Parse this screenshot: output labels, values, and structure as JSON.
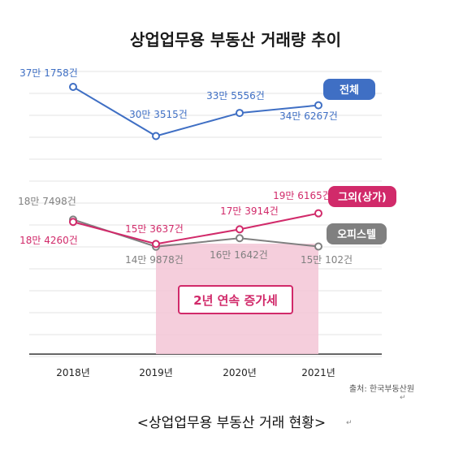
{
  "chart_data": {
    "type": "line",
    "title": "상업업무용 부동산 거래량 추이",
    "categories": [
      "2018년",
      "2019년",
      "2020년",
      "2021년"
    ],
    "series": [
      {
        "name": "전체",
        "values": [
          371758,
          303515,
          335556,
          346267
        ],
        "labels": [
          "37만 1758건",
          "30만 3515건",
          "33만 5556건",
          "34만 6267건"
        ],
        "color": "#3f6fc4"
      },
      {
        "name": "그외(상가)",
        "values": [
          184260,
          153637,
          173914,
          196165
        ],
        "labels": [
          "18만 4260건",
          "15만 3637건",
          "17만 3914건",
          "19만 6165건"
        ],
        "color": "#d12a6a"
      },
      {
        "name": "오피스텔",
        "values": [
          187498,
          149878,
          161642,
          150102
        ],
        "labels": [
          "18만 7498건",
          "14만 9878건",
          "16만 1642건",
          "15만 102건"
        ],
        "color": "#808080"
      }
    ],
    "highlight": {
      "text": "2년 연속 증가세",
      "from": "2019년",
      "to": "2021년",
      "color": "#f3c6d6"
    },
    "source": "출처: 한국부동산원",
    "grid": true,
    "xlabel": "",
    "ylabel": ""
  },
  "caption": "<상업업무용 부동산 거래 현황>",
  "return_mark": "↵"
}
